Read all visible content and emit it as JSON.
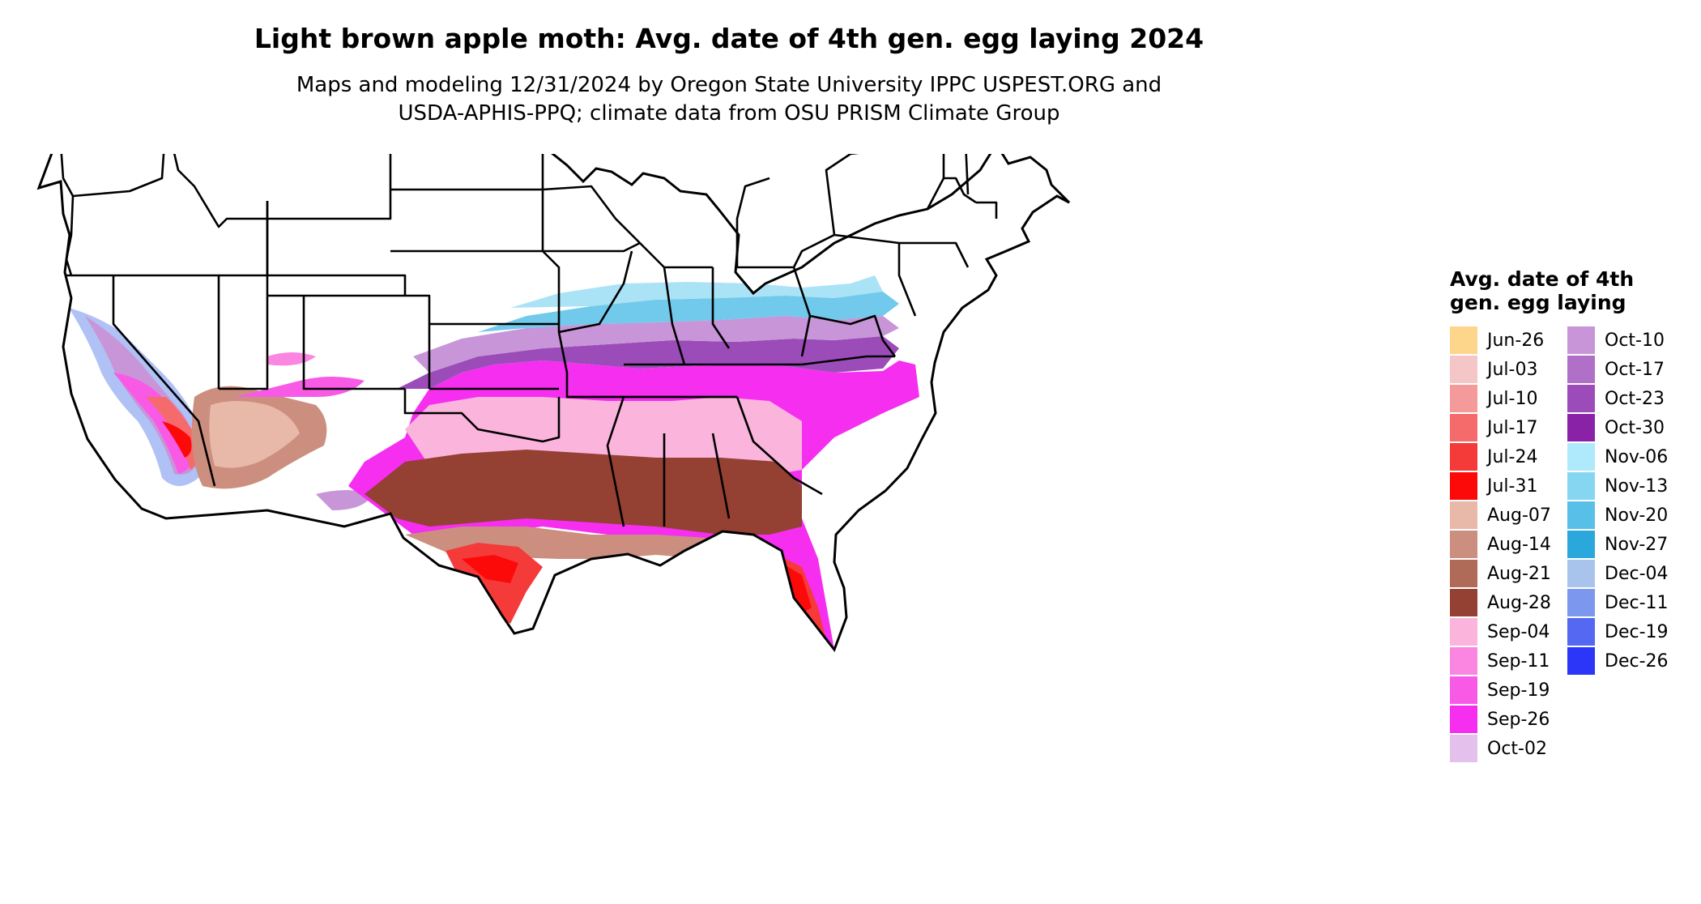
{
  "title": "Light brown apple moth: Avg. date of 4th gen. egg laying 2024",
  "subtitle_line1": "Maps and modeling 12/31/2024 by Oregon State University IPPC USPEST.ORG and",
  "subtitle_line2": "USDA-APHIS-PPQ; climate data from OSU PRISM Climate Group",
  "legend": {
    "title": "Avg. date of 4th gen. egg laying",
    "items": [
      {
        "label": "Jun-26",
        "color": "#fdd68c"
      },
      {
        "label": "Jul-03",
        "color": "#f5c6c8"
      },
      {
        "label": "Jul-10",
        "color": "#f59a9a"
      },
      {
        "label": "Jul-17",
        "color": "#f56a6a"
      },
      {
        "label": "Jul-24",
        "color": "#f53a3a"
      },
      {
        "label": "Jul-31",
        "color": "#fc0a0a"
      },
      {
        "label": "Aug-07",
        "color": "#e8b8a8"
      },
      {
        "label": "Aug-14",
        "color": "#cc8f7f"
      },
      {
        "label": "Aug-21",
        "color": "#b06a58"
      },
      {
        "label": "Aug-28",
        "color": "#944033"
      },
      {
        "label": "Sep-04",
        "color": "#fbb4dc"
      },
      {
        "label": "Sep-11",
        "color": "#fa86e2"
      },
      {
        "label": "Sep-19",
        "color": "#f85ae6"
      },
      {
        "label": "Sep-26",
        "color": "#f52ef0"
      },
      {
        "label": "Oct-02",
        "color": "#e4c0ec"
      },
      {
        "label": "Oct-10",
        "color": "#c896d8"
      },
      {
        "label": "Oct-17",
        "color": "#b070c8"
      },
      {
        "label": "Oct-23",
        "color": "#9c4cb8"
      },
      {
        "label": "Oct-30",
        "color": "#8a22a8"
      },
      {
        "label": "Nov-06",
        "color": "#aeeafc"
      },
      {
        "label": "Nov-13",
        "color": "#86d6f2"
      },
      {
        "label": "Nov-20",
        "color": "#58c0e8"
      },
      {
        "label": "Nov-27",
        "color": "#2aa8dc"
      },
      {
        "label": "Dec-04",
        "color": "#a8c4ec"
      },
      {
        "label": "Dec-11",
        "color": "#7c98ee"
      },
      {
        "label": "Dec-19",
        "color": "#5468f2"
      },
      {
        "label": "Dec-26",
        "color": "#2c36f8"
      }
    ]
  }
}
